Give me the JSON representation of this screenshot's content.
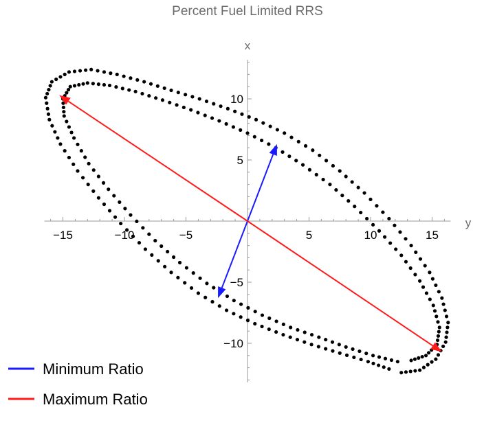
{
  "chart_data": {
    "type": "scatter",
    "title": "Percent Fuel Limited RRS",
    "xlabel": "y",
    "ylabel": "x",
    "xlim": [
      -16.5,
      16.5
    ],
    "ylim": [
      -13.2,
      13.2
    ],
    "x_ticks": [
      -15,
      -10,
      -5,
      5,
      10,
      15
    ],
    "y_ticks": [
      -10,
      -5,
      5,
      10
    ],
    "grid": false,
    "legend_position": "bottom-left",
    "colors": {
      "points": "#000000",
      "minimum": "#1a1aff",
      "maximum": "#ff1a1a"
    },
    "series": [
      {
        "kind": "points",
        "description_values": "outer ellipse-like ring",
        "points": [
          [
            12.5,
            -12.4
          ],
          [
            14.0,
            -12.2
          ],
          [
            15.3,
            -11.3
          ],
          [
            16.1,
            -9.9
          ],
          [
            16.3,
            -8.3
          ],
          [
            15.8,
            -6.3
          ],
          [
            14.8,
            -4.2
          ],
          [
            13.3,
            -2.0
          ],
          [
            11.5,
            0.2
          ],
          [
            9.5,
            2.3
          ],
          [
            7.5,
            4.1
          ],
          [
            5.3,
            5.8
          ],
          [
            3.0,
            7.2
          ],
          [
            0.7,
            8.3
          ],
          [
            -1.6,
            9.2
          ],
          [
            -3.9,
            10.0
          ],
          [
            -6.2,
            10.7
          ],
          [
            -8.4,
            11.4
          ],
          [
            -10.6,
            12.0
          ],
          [
            -12.7,
            12.4
          ],
          [
            -14.5,
            12.2
          ],
          [
            -15.9,
            11.4
          ],
          [
            -16.4,
            10.1
          ],
          [
            -16.1,
            8.3
          ],
          [
            -15.2,
            6.3
          ],
          [
            -13.8,
            4.1
          ],
          [
            -12.1,
            1.9
          ],
          [
            -10.3,
            -0.2
          ],
          [
            -8.3,
            -2.3
          ],
          [
            -6.2,
            -4.2
          ],
          [
            -4.0,
            -5.9
          ],
          [
            -1.7,
            -7.3
          ],
          [
            0.6,
            -8.4
          ],
          [
            2.9,
            -9.3
          ],
          [
            5.2,
            -10.1
          ],
          [
            7.5,
            -10.8
          ],
          [
            9.8,
            -11.5
          ],
          [
            11.5,
            -12.1
          ]
        ]
      },
      {
        "kind": "points",
        "description_values": "inner ellipse-like ring",
        "points": [
          [
            12.2,
            -11.5
          ],
          [
            10.2,
            -11.0
          ],
          [
            8.0,
            -10.3
          ],
          [
            5.8,
            -9.5
          ],
          [
            3.5,
            -8.7
          ],
          [
            1.2,
            -7.7
          ],
          [
            -1.1,
            -6.5
          ],
          [
            -3.3,
            -5.1
          ],
          [
            -5.5,
            -3.4
          ],
          [
            -7.5,
            -1.6
          ],
          [
            -9.5,
            0.5
          ],
          [
            -11.3,
            2.6
          ],
          [
            -12.9,
            4.7
          ],
          [
            -14.1,
            6.8
          ],
          [
            -14.9,
            8.6
          ],
          [
            -15.0,
            10.0
          ],
          [
            -14.4,
            11.0
          ],
          [
            -13.0,
            11.3
          ],
          [
            -11.2,
            11.1
          ],
          [
            -9.1,
            10.6
          ],
          [
            -6.9,
            9.9
          ],
          [
            -4.6,
            9.1
          ],
          [
            -2.3,
            8.2
          ],
          [
            0.0,
            7.2
          ],
          [
            2.3,
            6.0
          ],
          [
            4.5,
            4.6
          ],
          [
            6.7,
            3.0
          ],
          [
            8.7,
            1.2
          ],
          [
            10.7,
            -0.8
          ],
          [
            12.5,
            -2.8
          ],
          [
            14.0,
            -4.9
          ],
          [
            15.1,
            -6.9
          ],
          [
            15.6,
            -8.7
          ],
          [
            15.4,
            -10.1
          ],
          [
            14.5,
            -11.0
          ],
          [
            13.3,
            -11.4
          ]
        ]
      }
    ],
    "arrows": [
      {
        "name": "Minimum Ratio",
        "color": "#1a1aff",
        "from": [
          0,
          0
        ],
        "to": [
          2.4,
          6.3
        ]
      },
      {
        "name": "Minimum Ratio",
        "color": "#1a1aff",
        "from": [
          0,
          0
        ],
        "to": [
          -2.4,
          -6.3
        ]
      },
      {
        "name": "Maximum Ratio",
        "color": "#ff1a1a",
        "from": [
          0,
          0
        ],
        "to": [
          -15.3,
          10.3
        ]
      },
      {
        "name": "Maximum Ratio",
        "color": "#ff1a1a",
        "from": [
          0,
          0
        ],
        "to": [
          15.8,
          -10.7
        ]
      }
    ],
    "legend": [
      {
        "label": "Minimum Ratio",
        "color": "#1a1aff"
      },
      {
        "label": "Maximum Ratio",
        "color": "#ff1a1a"
      }
    ]
  }
}
